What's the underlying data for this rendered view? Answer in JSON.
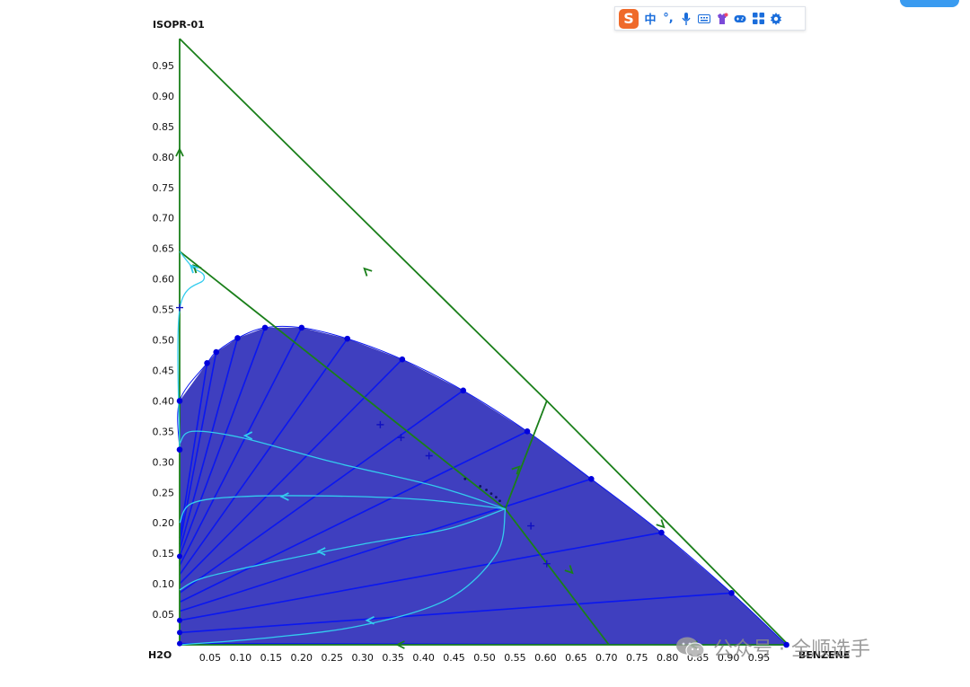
{
  "chart_data": {
    "type": "ternary",
    "vertices": {
      "top": "ISOPR-01",
      "bottom_left": "H2O",
      "bottom_right": "BENZENE"
    },
    "x_ticks": [
      "0.05",
      "0.10",
      "0.15",
      "0.20",
      "0.25",
      "0.30",
      "0.35",
      "0.40",
      "0.45",
      "0.50",
      "0.55",
      "0.60",
      "0.65",
      "0.70",
      "0.75",
      "0.80",
      "0.85",
      "0.90",
      "0.95"
    ],
    "y_ticks": [
      "0.05",
      "0.10",
      "0.15",
      "0.20",
      "0.25",
      "0.30",
      "0.35",
      "0.40",
      "0.45",
      "0.50",
      "0.55",
      "0.60",
      "0.65",
      "0.70",
      "0.75",
      "0.80",
      "0.85",
      "0.90",
      "0.95"
    ],
    "axis_range": {
      "x": [
        0,
        1
      ],
      "y": [
        0,
        1
      ]
    },
    "colors": {
      "two_phase_region": "#3f3fbf",
      "tie_line": "#0a17f0",
      "binodal_point": "#0000dd",
      "distillation_boundary": "#1a7f1a",
      "residue_curve": "#33ccee",
      "grid": "#ffffff"
    },
    "binodal_curve": [
      [
        0.0,
        0.32
      ],
      [
        0.0,
        0.4
      ],
      [
        0.045,
        0.462
      ],
      [
        0.06,
        0.48
      ],
      [
        0.095,
        0.503
      ],
      [
        0.14,
        0.52
      ],
      [
        0.2,
        0.52
      ],
      [
        0.275,
        0.502
      ],
      [
        0.365,
        0.468
      ],
      [
        0.465,
        0.417
      ],
      [
        0.57,
        0.35
      ],
      [
        0.675,
        0.272
      ],
      [
        0.79,
        0.184
      ],
      [
        0.905,
        0.085
      ],
      [
        0.995,
        0.0
      ]
    ],
    "tie_lines": [
      {
        "raffinate": [
          0.0,
          0.002
        ],
        "extract": [
          0.995,
          0.0
        ]
      },
      {
        "raffinate": [
          0.0,
          0.02
        ],
        "extract": [
          0.905,
          0.085
        ]
      },
      {
        "raffinate": [
          0.0,
          0.04
        ],
        "extract": [
          0.79,
          0.184
        ]
      },
      {
        "raffinate": [
          0.0,
          0.055
        ],
        "extract": [
          0.675,
          0.272
        ]
      },
      {
        "raffinate": [
          0.0,
          0.07
        ],
        "extract": [
          0.57,
          0.35
        ]
      },
      {
        "raffinate": [
          0.0,
          0.085
        ],
        "extract": [
          0.465,
          0.417
        ]
      },
      {
        "raffinate": [
          0.0,
          0.1
        ],
        "extract": [
          0.365,
          0.468
        ]
      },
      {
        "raffinate": [
          0.0,
          0.115
        ],
        "extract": [
          0.275,
          0.502
        ]
      },
      {
        "raffinate": [
          0.0,
          0.13
        ],
        "extract": [
          0.2,
          0.52
        ]
      },
      {
        "raffinate": [
          0.0,
          0.145
        ],
        "extract": [
          0.14,
          0.52
        ]
      },
      {
        "raffinate": [
          0.0,
          0.155
        ],
        "extract": [
          0.095,
          0.503
        ]
      },
      {
        "raffinate": [
          0.0,
          0.165
        ],
        "extract": [
          0.06,
          0.48
        ]
      },
      {
        "raffinate": [
          0.0,
          0.175
        ],
        "extract": [
          0.045,
          0.462
        ]
      }
    ],
    "raffinate_points": [
      [
        0.0,
        0.002
      ],
      [
        0.0,
        0.02
      ],
      [
        0.0,
        0.04
      ],
      [
        0.0,
        0.145
      ],
      [
        0.0,
        0.32
      ]
    ],
    "distillation_boundaries": [
      [
        [
          0.0,
          0.994
        ],
        [
          0.0,
          0.645
        ],
        [
          0.534,
          0.223
        ],
        [
          0.704,
          0.0
        ]
      ],
      [
        [
          0.0,
          0.994
        ],
        [
          0.602,
          0.4
        ],
        [
          0.998,
          0.0
        ]
      ],
      [
        [
          0.0,
          0.645
        ],
        [
          0.0,
          0.0
        ],
        [
          0.998,
          0.0
        ]
      ],
      [
        [
          0.534,
          0.223
        ],
        [
          0.602,
          0.4
        ]
      ]
    ],
    "residue_curves": [
      [
        [
          0.534,
          0.223
        ],
        [
          0.42,
          0.26
        ],
        [
          0.25,
          0.3
        ],
        [
          0.1,
          0.34
        ],
        [
          0.02,
          0.35
        ],
        [
          0.0,
          0.33
        ]
      ],
      [
        [
          0.534,
          0.223
        ],
        [
          0.4,
          0.238
        ],
        [
          0.25,
          0.244
        ],
        [
          0.1,
          0.243
        ],
        [
          0.02,
          0.232
        ],
        [
          0.0,
          0.2
        ]
      ],
      [
        [
          0.534,
          0.223
        ],
        [
          0.44,
          0.19
        ],
        [
          0.3,
          0.165
        ],
        [
          0.15,
          0.135
        ],
        [
          0.04,
          0.11
        ],
        [
          0.0,
          0.09
        ]
      ],
      [
        [
          0.534,
          0.223
        ],
        [
          0.52,
          0.15
        ],
        [
          0.44,
          0.075
        ],
        [
          0.3,
          0.032
        ],
        [
          0.15,
          0.012
        ],
        [
          0.0,
          0.0
        ]
      ],
      [
        [
          0.0,
          0.645
        ],
        [
          0.02,
          0.62
        ],
        [
          0.04,
          0.6
        ],
        [
          0.0,
          0.55
        ],
        [
          0.0,
          0.32
        ]
      ]
    ],
    "plus_markers": [
      [
        0.0,
        0.553
      ],
      [
        0.329,
        0.361
      ],
      [
        0.363,
        0.34
      ],
      [
        0.409,
        0.31
      ],
      [
        0.576,
        0.195
      ],
      [
        0.602,
        0.133
      ]
    ],
    "azeotrope_dots": [
      [
        0.468,
        0.272
      ],
      [
        0.493,
        0.26
      ],
      [
        0.503,
        0.254
      ],
      [
        0.511,
        0.248
      ],
      [
        0.519,
        0.242
      ],
      [
        0.525,
        0.236
      ]
    ],
    "boundary_arrows": [
      {
        "at": [
          0.305,
          0.615
        ],
        "dir": "up-left"
      },
      {
        "at": [
          0.792,
          0.195
        ],
        "dir": "down-right"
      },
      {
        "at": [
          0.0,
          0.81
        ],
        "dir": "up"
      },
      {
        "at": [
          0.025,
          0.62
        ],
        "dir": "up-left"
      },
      {
        "at": [
          0.642,
          0.12
        ],
        "dir": "down-right"
      },
      {
        "at": [
          0.36,
          0.0
        ],
        "dir": "left"
      },
      {
        "at": [
          0.84,
          0.0
        ],
        "dir": "left"
      },
      {
        "at": [
          0.555,
          0.29
        ],
        "dir": "up-right"
      }
    ],
    "residue_arrows": [
      {
        "at": [
          0.11,
          0.343
        ],
        "dir": "left"
      },
      {
        "at": [
          0.17,
          0.243
        ],
        "dir": "left"
      },
      {
        "at": [
          0.23,
          0.153
        ],
        "dir": "left"
      },
      {
        "at": [
          0.31,
          0.04
        ],
        "dir": "left"
      },
      {
        "at": [
          0.02,
          0.62
        ],
        "dir": "up-left"
      }
    ]
  },
  "toolbar": {
    "logo_letter": "S",
    "lang_label": "中",
    "punct_label": "°,",
    "icons": [
      "microphone-icon",
      "keyboard-icon",
      "skin-icon",
      "gamepad-icon",
      "grid-apps-icon",
      "settings-icon"
    ]
  },
  "watermark": {
    "text": "公众号 · 全顺选手"
  }
}
